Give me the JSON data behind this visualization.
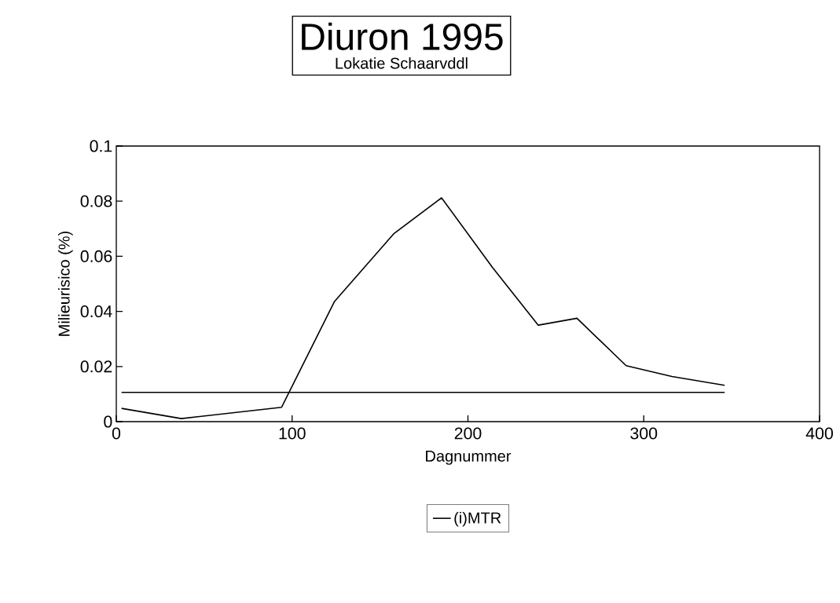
{
  "chart_data": {
    "type": "line",
    "title": "Diuron 1995",
    "subtitle": "Lokatie Schaarvddl",
    "xlabel": "Dagnummer",
    "ylabel": "Milieurisico (%)",
    "xlim": [
      0,
      400
    ],
    "ylim": [
      0,
      0.1
    ],
    "xticks": [
      0,
      100,
      200,
      300,
      400
    ],
    "yticks": [
      0,
      0.02,
      0.04,
      0.06,
      0.08,
      0.1
    ],
    "legend": "bottom",
    "series": [
      {
        "color": "#000000",
        "x": [
          3,
          37,
          94,
          124,
          158,
          185,
          214,
          240,
          262,
          290,
          316,
          346
        ],
        "values": [
          0.0048,
          0.0011,
          0.0052,
          0.0435,
          0.0683,
          0.0812,
          0.0559,
          0.035,
          0.0375,
          0.0203,
          0.0164,
          0.0132
        ]
      },
      {
        "name": "(i)MTR",
        "color": "#000000",
        "x": [
          3,
          346
        ],
        "values": [
          0.0106,
          0.0106
        ]
      }
    ]
  }
}
